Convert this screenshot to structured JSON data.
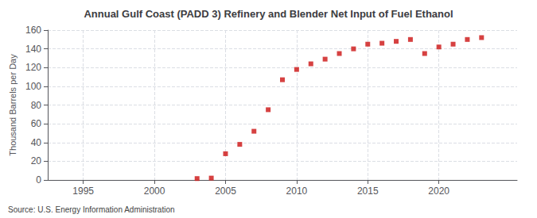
{
  "chart_data": {
    "type": "scatter",
    "title": "Annual Gulf Coast (PADD 3) Refinery and Blender Net Input of Fuel Ethanol",
    "ylabel": "Thousand Barrels per Day",
    "source": "Source: U.S. Energy Information Administration",
    "x": [
      2003,
      2004,
      2005,
      2006,
      2007,
      2008,
      2009,
      2010,
      2011,
      2012,
      2013,
      2014,
      2015,
      2016,
      2017,
      2018,
      2019,
      2020,
      2021,
      2022,
      2023
    ],
    "values": [
      1.5,
      2.0,
      28.0,
      38.0,
      52.0,
      75.0,
      107.0,
      118.0,
      124.0,
      129.0,
      135.0,
      140.0,
      145.0,
      146.0,
      148.0,
      150.0,
      135.0,
      142.0,
      145.0,
      150.0,
      152.0
    ],
    "color": "#cc1111",
    "marker": "square",
    "xlim": [
      1992.5,
      2025.5
    ],
    "xticks": [
      1995,
      2000,
      2005,
      2010,
      2015,
      2020
    ],
    "ylim": [
      0,
      160
    ],
    "yticks": [
      0,
      20,
      40,
      60,
      80,
      100,
      120,
      140,
      160
    ],
    "grid": true
  }
}
